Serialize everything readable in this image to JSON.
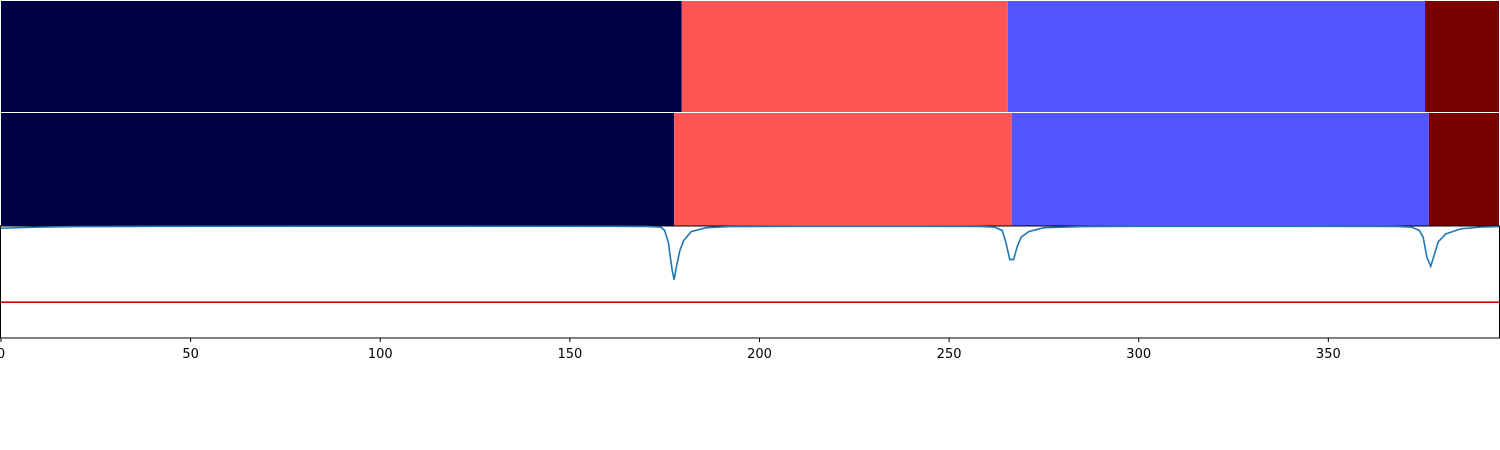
{
  "chart_data": {
    "type": "segmentation-timeline",
    "xlim": [
      0,
      395
    ],
    "x_ticks": [
      0,
      50,
      100,
      150,
      200,
      250,
      300,
      350
    ],
    "x_tick_labels": [
      "0",
      "50",
      "100",
      "150",
      "200",
      "250",
      "300",
      "350"
    ],
    "segment_rows": [
      {
        "segments": [
          {
            "start": 0,
            "end": 179.5,
            "color": "#000047"
          },
          {
            "start": 179.5,
            "end": 265.5,
            "color": "#ff5555"
          },
          {
            "start": 265.5,
            "end": 375.5,
            "color": "#5555ff"
          },
          {
            "start": 375.5,
            "end": 395,
            "color": "#7a0000"
          }
        ]
      },
      {
        "segments": [
          {
            "start": 0,
            "end": 177.5,
            "color": "#000047"
          },
          {
            "start": 177.5,
            "end": 266.5,
            "color": "#ff5555"
          },
          {
            "start": 266.5,
            "end": 376.5,
            "color": "#5555ff"
          },
          {
            "start": 376.5,
            "end": 395,
            "color": "#7a0000"
          }
        ]
      }
    ],
    "signal": {
      "color": "#1f77b4",
      "ylim": [
        0,
        1
      ],
      "x": [
        0,
        4,
        10,
        20,
        40,
        80,
        120,
        160,
        170,
        174,
        175,
        176,
        176.5,
        177,
        177.5,
        178,
        179,
        180,
        182,
        186,
        192,
        210,
        240,
        258,
        262,
        264,
        265,
        266,
        267,
        268,
        269,
        271,
        275,
        285,
        300,
        340,
        368,
        372,
        374,
        375,
        376,
        377,
        378,
        379,
        381,
        385,
        390,
        395
      ],
      "y": [
        0.98,
        0.985,
        0.99,
        0.995,
        0.997,
        0.998,
        0.998,
        0.997,
        0.996,
        0.99,
        0.96,
        0.85,
        0.72,
        0.6,
        0.52,
        0.62,
        0.78,
        0.87,
        0.95,
        0.985,
        0.995,
        0.997,
        0.997,
        0.996,
        0.99,
        0.96,
        0.85,
        0.7,
        0.7,
        0.82,
        0.9,
        0.95,
        0.985,
        0.995,
        0.997,
        0.997,
        0.996,
        0.99,
        0.96,
        0.9,
        0.72,
        0.64,
        0.75,
        0.86,
        0.93,
        0.975,
        0.99,
        0.995
      ]
    },
    "threshold": {
      "y": 0.32,
      "color": "#e00000"
    }
  }
}
